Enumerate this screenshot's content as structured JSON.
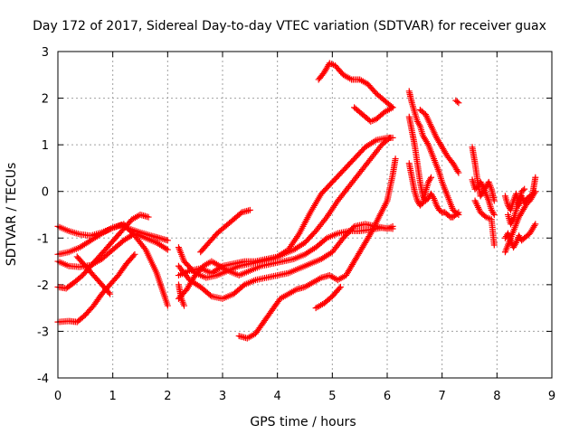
{
  "chart_data": {
    "type": "scatter",
    "title": "Day 172 of 2017, Sidereal Day-to-day VTEC variation (SDTVAR) for receiver guax",
    "xlabel": "GPS time / hours",
    "ylabel": "SDTVAR / TECUs",
    "xlim": [
      0,
      9
    ],
    "ylim": [
      -4,
      3
    ],
    "xticks": [
      "0",
      "1",
      "2",
      "3",
      "4",
      "5",
      "6",
      "7",
      "8",
      "9"
    ],
    "yticks": [
      "-4",
      "-3",
      "-2",
      "-1",
      "0",
      "1",
      "2",
      "3"
    ],
    "grid": true,
    "marker": "+",
    "color": "#ff0000",
    "tracks": [
      [
        [
          0.0,
          -0.75
        ],
        [
          0.2,
          -0.85
        ],
        [
          0.4,
          -0.92
        ],
        [
          0.6,
          -0.95
        ],
        [
          0.8,
          -0.88
        ],
        [
          1.0,
          -0.78
        ],
        [
          1.15,
          -0.72
        ],
        [
          1.3,
          -0.8
        ],
        [
          1.5,
          -0.88
        ],
        [
          1.7,
          -0.95
        ],
        [
          1.85,
          -1.0
        ],
        [
          2.0,
          -1.05
        ]
      ],
      [
        [
          0.0,
          -1.35
        ],
        [
          0.2,
          -1.3
        ],
        [
          0.4,
          -1.2
        ],
        [
          0.6,
          -1.05
        ],
        [
          0.8,
          -0.9
        ],
        [
          1.0,
          -0.78
        ],
        [
          1.2,
          -0.7
        ],
        [
          1.4,
          -0.95
        ],
        [
          1.6,
          -1.25
        ],
        [
          1.8,
          -1.75
        ],
        [
          2.0,
          -2.45
        ]
      ],
      [
        [
          0.0,
          -1.5
        ],
        [
          0.2,
          -1.6
        ],
        [
          0.4,
          -1.62
        ],
        [
          0.6,
          -1.58
        ],
        [
          0.8,
          -1.45
        ],
        [
          1.0,
          -1.25
        ],
        [
          1.2,
          -1.05
        ],
        [
          1.4,
          -0.9
        ],
        [
          1.6,
          -1.0
        ],
        [
          1.8,
          -1.1
        ],
        [
          2.0,
          -1.25
        ]
      ],
      [
        [
          0.0,
          -2.05
        ],
        [
          0.15,
          -2.08
        ],
        [
          0.3,
          -1.95
        ],
        [
          0.45,
          -1.8
        ],
        [
          0.6,
          -1.6
        ],
        [
          0.75,
          -1.4
        ],
        [
          0.9,
          -1.2
        ],
        [
          1.05,
          -1.0
        ],
        [
          1.2,
          -0.8
        ],
        [
          1.35,
          -0.6
        ],
        [
          1.5,
          -0.5
        ],
        [
          1.65,
          -0.55
        ]
      ],
      [
        [
          0.0,
          -2.8
        ],
        [
          0.2,
          -2.78
        ],
        [
          0.35,
          -2.8
        ],
        [
          0.5,
          -2.65
        ],
        [
          0.65,
          -2.45
        ],
        [
          0.8,
          -2.2
        ],
        [
          0.95,
          -2.0
        ],
        [
          1.1,
          -1.8
        ],
        [
          1.25,
          -1.55
        ],
        [
          1.4,
          -1.35
        ]
      ],
      [
        [
          0.35,
          -1.4
        ],
        [
          0.5,
          -1.6
        ],
        [
          0.65,
          -1.8
        ],
        [
          0.8,
          -2.0
        ],
        [
          0.95,
          -2.2
        ]
      ],
      [
        [
          2.2,
          -1.2
        ],
        [
          2.3,
          -1.5
        ],
        [
          2.5,
          -1.75
        ],
        [
          2.7,
          -1.85
        ],
        [
          2.9,
          -1.8
        ],
        [
          3.1,
          -1.7
        ],
        [
          3.3,
          -1.6
        ],
        [
          3.5,
          -1.55
        ],
        [
          3.7,
          -1.5
        ],
        [
          3.9,
          -1.45
        ],
        [
          4.1,
          -1.35
        ],
        [
          4.3,
          -1.25
        ],
        [
          4.5,
          -1.1
        ],
        [
          4.7,
          -0.85
        ],
        [
          4.9,
          -0.55
        ],
        [
          5.1,
          -0.2
        ],
        [
          5.3,
          0.1
        ],
        [
          5.5,
          0.4
        ],
        [
          5.7,
          0.7
        ],
        [
          5.9,
          1.0
        ],
        [
          6.05,
          1.15
        ]
      ],
      [
        [
          2.2,
          -1.8
        ],
        [
          2.4,
          -1.7
        ],
        [
          2.6,
          -1.65
        ],
        [
          2.8,
          -1.75
        ],
        [
          3.0,
          -1.6
        ],
        [
          3.2,
          -1.55
        ],
        [
          3.4,
          -1.5
        ],
        [
          3.6,
          -1.5
        ],
        [
          3.8,
          -1.45
        ],
        [
          4.0,
          -1.4
        ],
        [
          4.2,
          -1.25
        ],
        [
          4.4,
          -0.9
        ],
        [
          4.6,
          -0.45
        ],
        [
          4.8,
          -0.05
        ],
        [
          5.0,
          0.2
        ],
        [
          5.2,
          0.45
        ],
        [
          5.4,
          0.7
        ],
        [
          5.6,
          0.95
        ],
        [
          5.8,
          1.1
        ],
        [
          6.0,
          1.15
        ],
        [
          6.1,
          1.15
        ]
      ],
      [
        [
          2.2,
          -2.3
        ],
        [
          2.35,
          -2.1
        ],
        [
          2.5,
          -1.8
        ],
        [
          2.65,
          -1.6
        ],
        [
          2.8,
          -1.5
        ],
        [
          2.95,
          -1.6
        ],
        [
          3.1,
          -1.7
        ],
        [
          3.3,
          -1.8
        ],
        [
          3.5,
          -1.7
        ],
        [
          3.7,
          -1.6
        ],
        [
          3.9,
          -1.55
        ],
        [
          4.1,
          -1.5
        ],
        [
          4.3,
          -1.45
        ],
        [
          4.5,
          -1.35
        ],
        [
          4.7,
          -1.2
        ],
        [
          4.9,
          -1.0
        ],
        [
          5.1,
          -0.9
        ],
        [
          5.3,
          -0.85
        ],
        [
          5.5,
          -0.85
        ],
        [
          5.7,
          -0.82
        ],
        [
          5.9,
          -0.78
        ],
        [
          6.1,
          -0.8
        ]
      ],
      [
        [
          2.2,
          -1.6
        ],
        [
          2.4,
          -1.9
        ],
        [
          2.6,
          -2.05
        ],
        [
          2.8,
          -2.25
        ],
        [
          3.0,
          -2.3
        ],
        [
          3.2,
          -2.2
        ],
        [
          3.4,
          -2.0
        ],
        [
          3.6,
          -1.9
        ],
        [
          3.8,
          -1.85
        ],
        [
          4.0,
          -1.8
        ],
        [
          4.2,
          -1.75
        ],
        [
          4.4,
          -1.65
        ],
        [
          4.6,
          -1.55
        ],
        [
          4.8,
          -1.45
        ],
        [
          5.0,
          -1.3
        ],
        [
          5.2,
          -1.0
        ],
        [
          5.4,
          -0.75
        ],
        [
          5.6,
          -0.7
        ],
        [
          5.8,
          -0.75
        ],
        [
          6.0,
          -0.8
        ],
        [
          6.1,
          -0.75
        ]
      ],
      [
        [
          2.2,
          -2.0
        ],
        [
          2.25,
          -2.3
        ],
        [
          2.3,
          -2.45
        ]
      ],
      [
        [
          2.6,
          -1.3
        ],
        [
          2.75,
          -1.1
        ],
        [
          2.9,
          -0.9
        ],
        [
          3.05,
          -0.75
        ],
        [
          3.2,
          -0.6
        ],
        [
          3.35,
          -0.45
        ],
        [
          3.5,
          -0.4
        ]
      ],
      [
        [
          3.3,
          -3.1
        ],
        [
          3.45,
          -3.15
        ],
        [
          3.6,
          -3.05
        ],
        [
          3.75,
          -2.8
        ],
        [
          3.9,
          -2.55
        ],
        [
          4.05,
          -2.3
        ],
        [
          4.2,
          -2.2
        ],
        [
          4.35,
          -2.1
        ],
        [
          4.5,
          -2.05
        ],
        [
          4.65,
          -1.95
        ],
        [
          4.8,
          -1.85
        ],
        [
          4.95,
          -1.8
        ],
        [
          5.1,
          -1.9
        ],
        [
          5.25,
          -1.8
        ],
        [
          5.4,
          -1.5
        ],
        [
          5.55,
          -1.2
        ],
        [
          5.7,
          -0.9
        ],
        [
          5.85,
          -0.55
        ],
        [
          6.0,
          -0.2
        ],
        [
          6.1,
          0.35
        ],
        [
          6.15,
          0.7
        ]
      ],
      [
        [
          4.7,
          -2.5
        ],
        [
          4.85,
          -2.4
        ],
        [
          5.0,
          -2.25
        ],
        [
          5.15,
          -2.05
        ]
      ],
      [
        [
          4.75,
          2.4
        ],
        [
          4.85,
          2.55
        ],
        [
          4.95,
          2.75
        ],
        [
          5.05,
          2.7
        ],
        [
          5.2,
          2.5
        ],
        [
          5.35,
          2.4
        ],
        [
          5.5,
          2.4
        ],
        [
          5.65,
          2.3
        ],
        [
          5.8,
          2.1
        ],
        [
          5.95,
          1.95
        ],
        [
          6.1,
          1.8
        ]
      ],
      [
        [
          5.4,
          1.8
        ],
        [
          5.5,
          1.7
        ],
        [
          5.6,
          1.6
        ],
        [
          5.7,
          1.5
        ],
        [
          5.8,
          1.55
        ],
        [
          5.95,
          1.7
        ],
        [
          6.1,
          1.8
        ]
      ],
      [
        [
          6.4,
          2.15
        ],
        [
          6.45,
          1.9
        ],
        [
          6.5,
          1.7
        ],
        [
          6.55,
          1.5
        ],
        [
          6.6,
          1.4
        ],
        [
          6.65,
          1.2
        ],
        [
          6.7,
          1.1
        ],
        [
          6.75,
          1.0
        ],
        [
          6.8,
          0.85
        ],
        [
          6.85,
          0.7
        ],
        [
          6.9,
          0.55
        ],
        [
          6.95,
          0.4
        ],
        [
          7.0,
          0.2
        ],
        [
          7.05,
          0.05
        ],
        [
          7.1,
          -0.1
        ],
        [
          7.15,
          -0.25
        ],
        [
          7.2,
          -0.4
        ],
        [
          7.25,
          -0.45
        ],
        [
          7.3,
          -0.5
        ]
      ],
      [
        [
          6.4,
          1.6
        ],
        [
          6.45,
          1.3
        ],
        [
          6.5,
          1.0
        ],
        [
          6.55,
          0.6
        ],
        [
          6.6,
          0.2
        ],
        [
          6.65,
          -0.1
        ],
        [
          6.7,
          -0.2
        ],
        [
          6.75,
          -0.15
        ],
        [
          6.8,
          -0.05
        ],
        [
          6.85,
          -0.15
        ],
        [
          6.9,
          -0.3
        ],
        [
          6.95,
          -0.4
        ],
        [
          7.0,
          -0.45
        ],
        [
          7.05,
          -0.45
        ],
        [
          7.1,
          -0.5
        ],
        [
          7.15,
          -0.55
        ],
        [
          7.2,
          -0.55
        ],
        [
          7.25,
          -0.5
        ],
        [
          7.3,
          -0.45
        ]
      ],
      [
        [
          6.4,
          0.6
        ],
        [
          6.45,
          0.3
        ],
        [
          6.5,
          0.0
        ],
        [
          6.55,
          -0.2
        ],
        [
          6.6,
          -0.3
        ],
        [
          6.65,
          -0.25
        ],
        [
          6.7,
          0.0
        ],
        [
          6.75,
          0.2
        ],
        [
          6.8,
          0.3
        ]
      ],
      [
        [
          6.6,
          1.75
        ],
        [
          6.7,
          1.65
        ],
        [
          6.8,
          1.4
        ],
        [
          6.9,
          1.15
        ],
        [
          7.0,
          0.95
        ],
        [
          7.1,
          0.75
        ],
        [
          7.2,
          0.6
        ],
        [
          7.3,
          0.4
        ]
      ],
      [
        [
          7.25,
          1.95
        ],
        [
          7.3,
          1.9
        ]
      ],
      [
        [
          7.55,
          0.95
        ],
        [
          7.6,
          0.6
        ],
        [
          7.65,
          0.2
        ],
        [
          7.7,
          -0.1
        ],
        [
          7.75,
          0.0
        ],
        [
          7.8,
          0.1
        ],
        [
          7.85,
          0.2
        ],
        [
          7.9,
          0.05
        ],
        [
          7.95,
          -0.2
        ]
      ],
      [
        [
          7.55,
          0.25
        ],
        [
          7.6,
          0.05
        ],
        [
          7.65,
          0.1
        ],
        [
          7.7,
          0.2
        ],
        [
          7.75,
          0.1
        ],
        [
          7.8,
          -0.05
        ],
        [
          7.85,
          -0.2
        ],
        [
          7.9,
          -0.4
        ],
        [
          7.95,
          -0.5
        ]
      ],
      [
        [
          7.6,
          -0.2
        ],
        [
          7.7,
          -0.45
        ],
        [
          7.8,
          -0.55
        ],
        [
          7.9,
          -0.6
        ],
        [
          7.95,
          -1.15
        ]
      ],
      [
        [
          8.15,
          -1.3
        ],
        [
          8.2,
          -1.15
        ],
        [
          8.25,
          -1.0
        ],
        [
          8.3,
          -0.85
        ],
        [
          8.35,
          -0.7
        ],
        [
          8.4,
          -0.55
        ],
        [
          8.45,
          -0.45
        ],
        [
          8.5,
          -0.35
        ],
        [
          8.55,
          -0.25
        ],
        [
          8.6,
          -0.2
        ],
        [
          8.65,
          -0.1
        ],
        [
          8.7,
          0.0
        ]
      ],
      [
        [
          8.15,
          -0.1
        ],
        [
          8.2,
          -0.3
        ],
        [
          8.25,
          -0.4
        ],
        [
          8.3,
          -0.2
        ],
        [
          8.35,
          -0.05
        ],
        [
          8.4,
          -0.3
        ],
        [
          8.45,
          -0.1
        ],
        [
          8.5,
          -0.25
        ],
        [
          8.55,
          -0.15
        ],
        [
          8.6,
          -0.1
        ],
        [
          8.65,
          -0.05
        ],
        [
          8.7,
          0.3
        ]
      ],
      [
        [
          8.15,
          -1.0
        ],
        [
          8.2,
          -0.9
        ],
        [
          8.25,
          -1.05
        ],
        [
          8.3,
          -1.2
        ],
        [
          8.35,
          -1.1
        ],
        [
          8.4,
          -0.95
        ],
        [
          8.45,
          -1.05
        ],
        [
          8.5,
          -1.0
        ],
        [
          8.55,
          -0.95
        ],
        [
          8.6,
          -0.9
        ],
        [
          8.65,
          -0.8
        ],
        [
          8.7,
          -0.7
        ]
      ],
      [
        [
          8.2,
          -0.5
        ],
        [
          8.25,
          -0.7
        ],
        [
          8.3,
          -0.6
        ],
        [
          8.35,
          -0.4
        ],
        [
          8.4,
          -0.2
        ],
        [
          8.45,
          0.0
        ],
        [
          8.5,
          0.05
        ]
      ]
    ]
  }
}
